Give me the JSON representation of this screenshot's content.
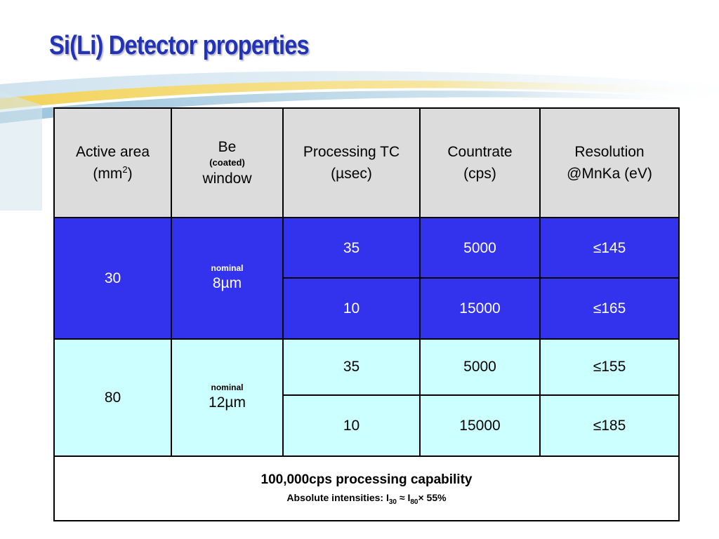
{
  "slide": {
    "title": "Si(Li) Detector properties"
  },
  "colors": {
    "title": "#2233b8",
    "header_bg": "#dcdcdc",
    "row30_bg": "#3333ee",
    "row80_bg": "#ccffff"
  },
  "table": {
    "headers": {
      "active_area": {
        "line1": "Active area",
        "line2_pre": "(mm",
        "sup": "2",
        "line2_post": ")"
      },
      "be_window": {
        "line1": "Be",
        "small": "(coated)",
        "line3": "window"
      },
      "processing_tc": {
        "line1": "Processing TC",
        "line2": "(µsec)"
      },
      "countrate": {
        "line1": "Countrate",
        "line2": "(cps)"
      },
      "resolution": {
        "line1": "Resolution",
        "line2": "@MnKa (eV)"
      }
    },
    "groups": [
      {
        "active_area": "30",
        "window_label": "nominal",
        "window_thickness": "8µm",
        "rows": [
          {
            "tc": "35",
            "countrate": "5000",
            "resolution": "≤145"
          },
          {
            "tc": "10",
            "countrate": "15000",
            "resolution": "≤165"
          }
        ]
      },
      {
        "active_area": "80",
        "window_label": "nominal",
        "window_thickness": "12µm",
        "rows": [
          {
            "tc": "35",
            "countrate": "5000",
            "resolution": "≤155"
          },
          {
            "tc": "10",
            "countrate": "15000",
            "resolution": "≤185"
          }
        ]
      }
    ],
    "footer": {
      "main": "100,000cps processing capability",
      "sub_prefix": "Absolute intensities: I",
      "sub_a": "30",
      "sub_mid": " ≈ I",
      "sub_b": "80",
      "sub_suffix": "× 55%"
    }
  }
}
